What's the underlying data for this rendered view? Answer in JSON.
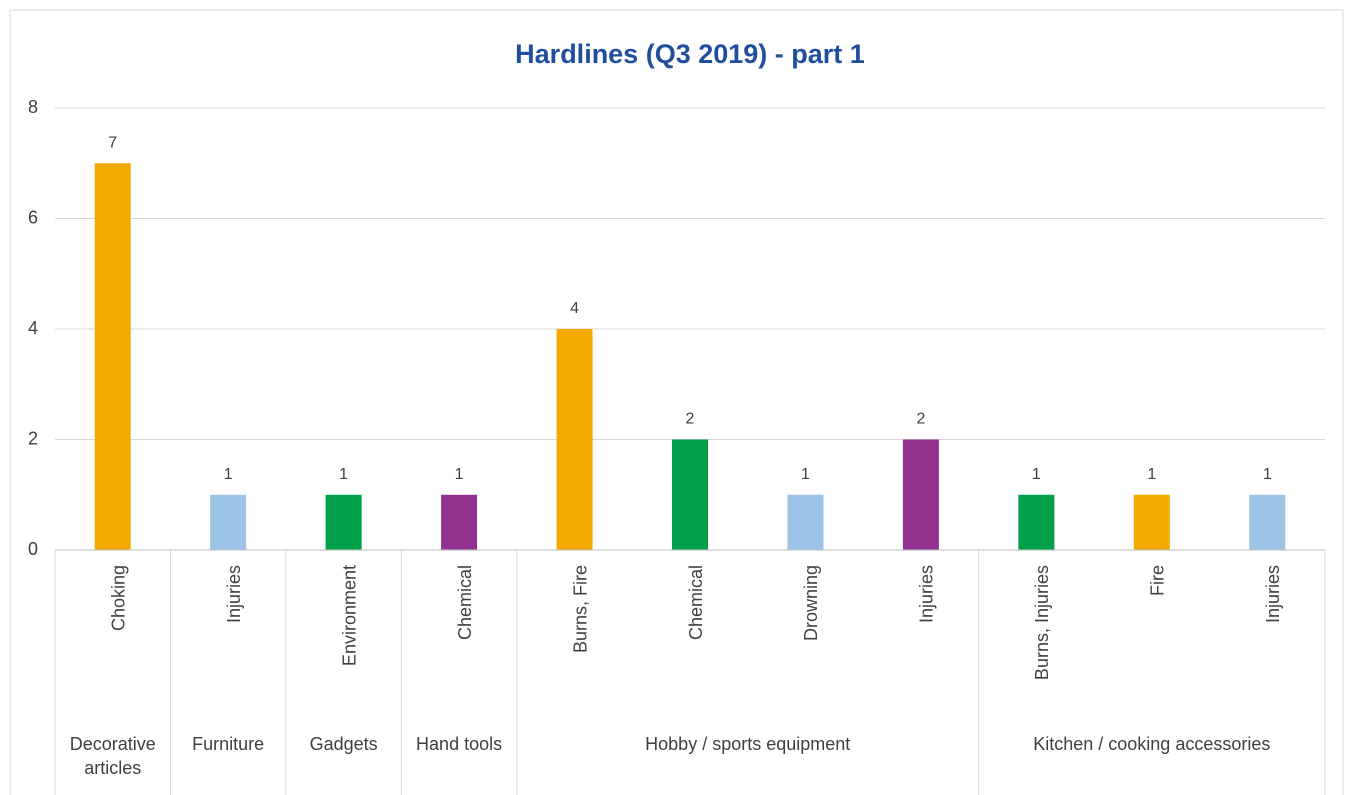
{
  "chart_data": {
    "type": "bar",
    "title": "Hardlines (Q3 2019) - part 1",
    "groups": [
      {
        "label": "Decorative articles",
        "categories": [
          "Choking"
        ],
        "values": [
          7
        ],
        "colors": [
          "#f2a900"
        ]
      },
      {
        "label": "Furniture",
        "categories": [
          "Injuries"
        ],
        "values": [
          1
        ],
        "colors": [
          "#9dc3e6"
        ]
      },
      {
        "label": "Gadgets",
        "categories": [
          "Environment"
        ],
        "values": [
          1
        ],
        "colors": [
          "#00a04b"
        ]
      },
      {
        "label": "Hand tools",
        "categories": [
          "Chemical"
        ],
        "values": [
          1
        ],
        "colors": [
          "#923391"
        ]
      },
      {
        "label": "Hobby / sports equipment",
        "categories": [
          "Burns, Fire",
          "Chemical",
          "Drowning",
          "Injuries"
        ],
        "values": [
          4,
          2,
          1,
          2
        ],
        "colors": [
          "#f2a900",
          "#00a04b",
          "#9dc3e6",
          "#923391"
        ]
      },
      {
        "label": "Kitchen / cooking accessories",
        "categories": [
          "Burns, Injuries",
          "Fire",
          "Injuries"
        ],
        "values": [
          1,
          1,
          1
        ],
        "colors": [
          "#00a04b",
          "#f2a900",
          "#9dc3e6"
        ]
      }
    ],
    "ylim": [
      0,
      8
    ],
    "yticks": [
      0,
      2,
      4,
      6,
      8
    ],
    "grid": true
  }
}
